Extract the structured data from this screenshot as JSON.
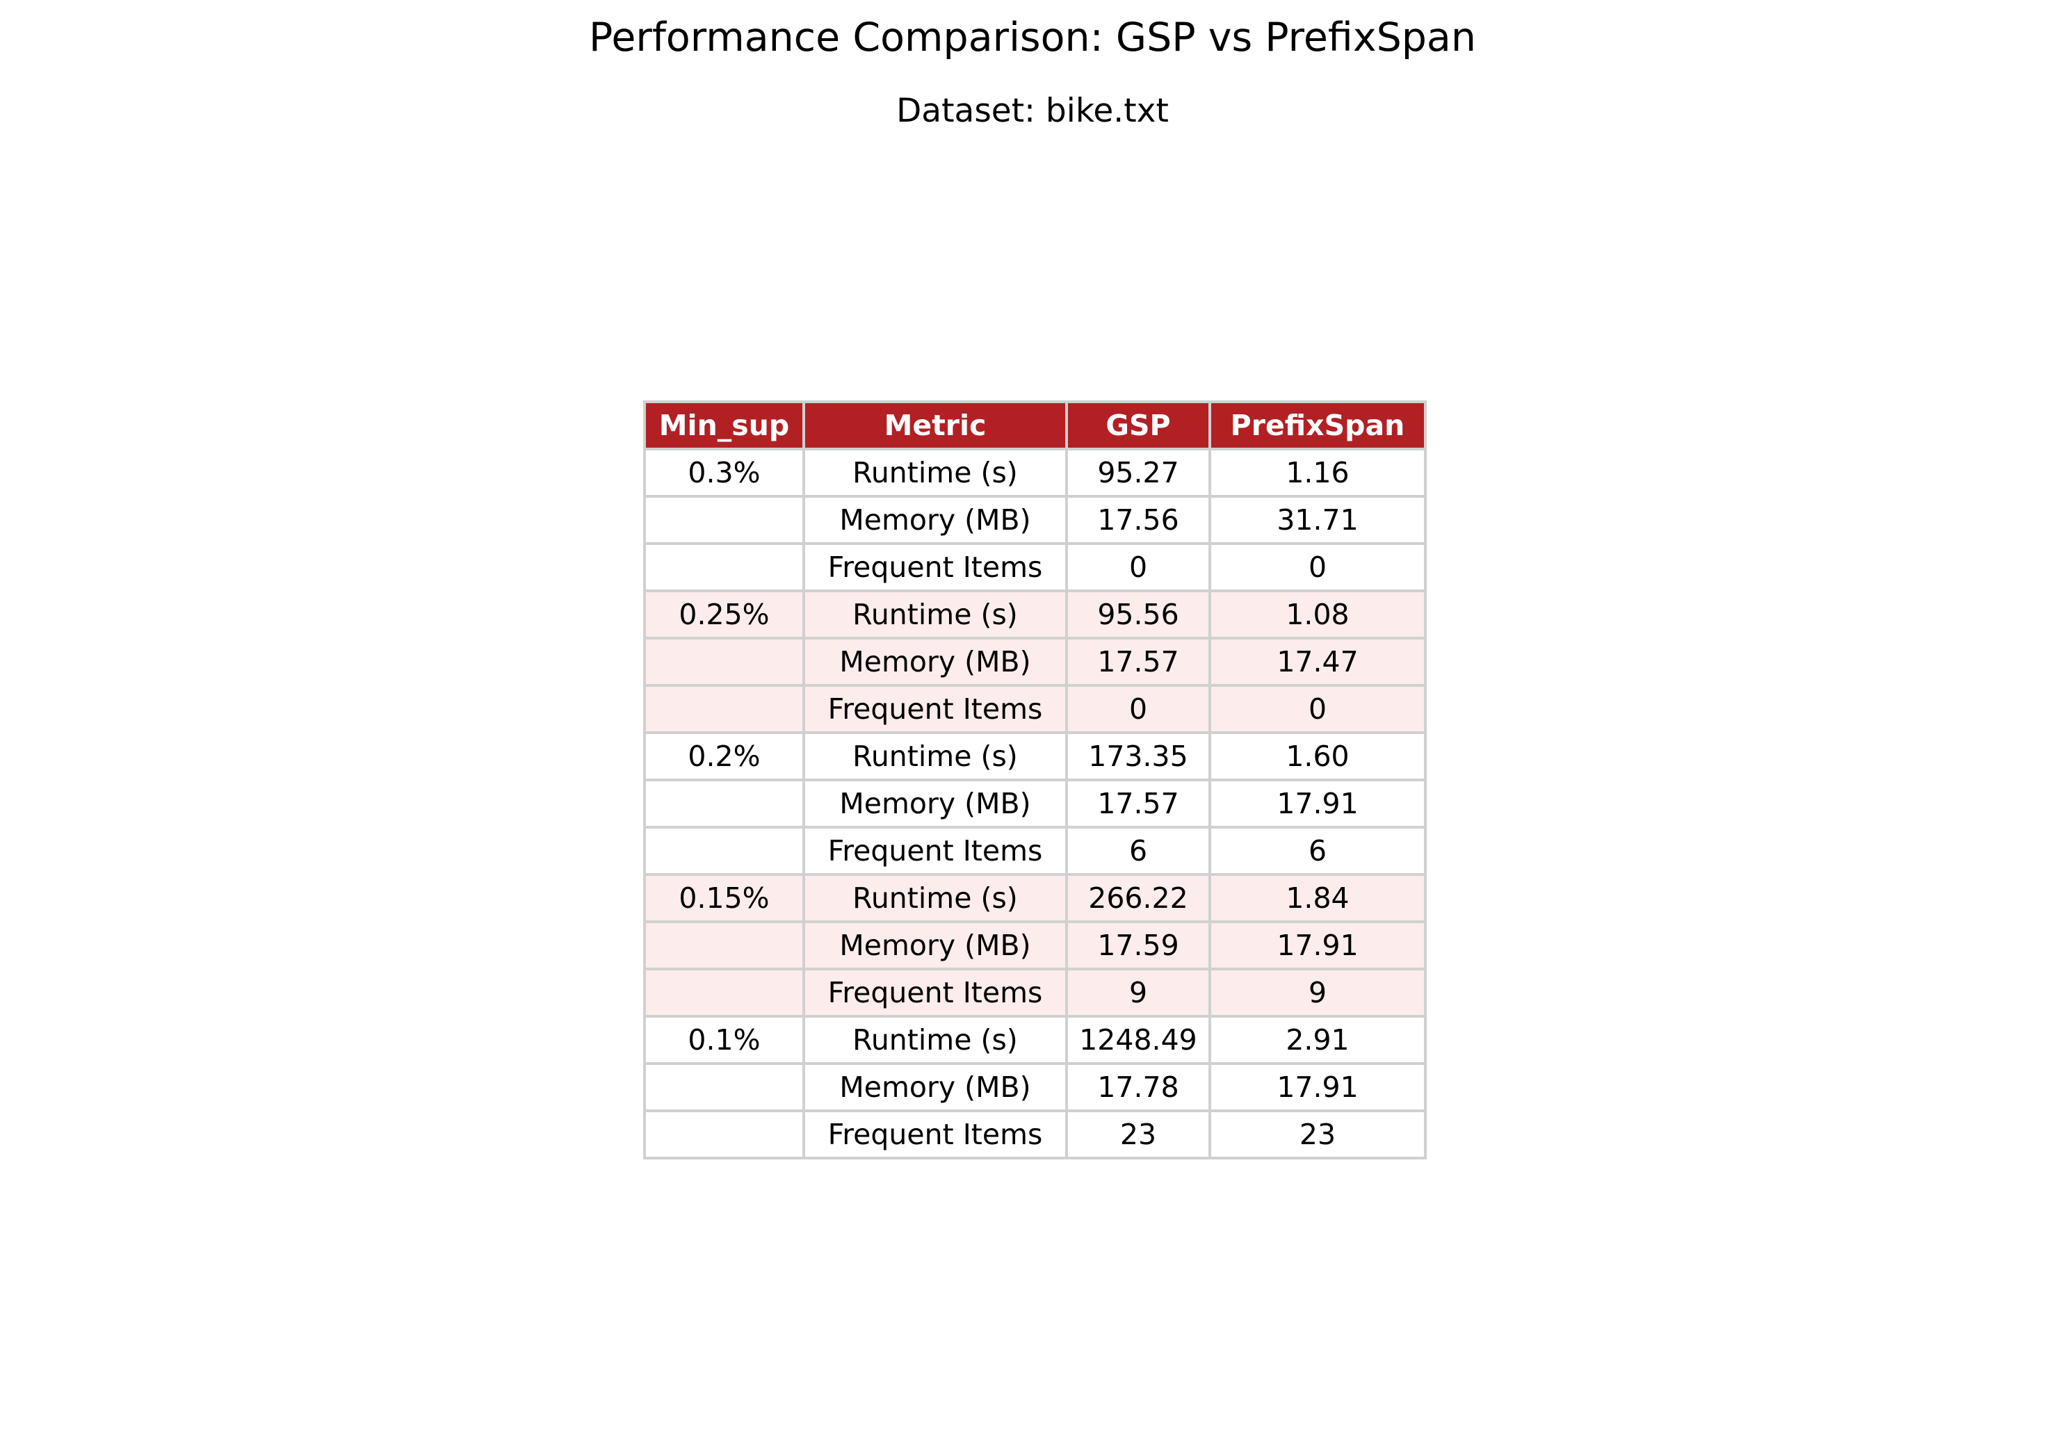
{
  "chart_data": {
    "type": "table",
    "title": "Performance Comparison: GSP vs PrefixSpan",
    "subtitle": "Dataset: bike.txt",
    "columns": [
      "Min_sup",
      "Metric",
      "GSP",
      "PrefixSpan"
    ],
    "groups": [
      {
        "min_sup": "0.3%",
        "rows": [
          {
            "metric": "Runtime (s)",
            "gsp": "95.27",
            "prefixspan": "1.16"
          },
          {
            "metric": "Memory (MB)",
            "gsp": "17.56",
            "prefixspan": "31.71"
          },
          {
            "metric": "Frequent Items",
            "gsp": "0",
            "prefixspan": "0"
          }
        ]
      },
      {
        "min_sup": "0.25%",
        "rows": [
          {
            "metric": "Runtime (s)",
            "gsp": "95.56",
            "prefixspan": "1.08"
          },
          {
            "metric": "Memory (MB)",
            "gsp": "17.57",
            "prefixspan": "17.47"
          },
          {
            "metric": "Frequent Items",
            "gsp": "0",
            "prefixspan": "0"
          }
        ]
      },
      {
        "min_sup": "0.2%",
        "rows": [
          {
            "metric": "Runtime (s)",
            "gsp": "173.35",
            "prefixspan": "1.60"
          },
          {
            "metric": "Memory (MB)",
            "gsp": "17.57",
            "prefixspan": "17.91"
          },
          {
            "metric": "Frequent Items",
            "gsp": "6",
            "prefixspan": "6"
          }
        ]
      },
      {
        "min_sup": "0.15%",
        "rows": [
          {
            "metric": "Runtime (s)",
            "gsp": "266.22",
            "prefixspan": "1.84"
          },
          {
            "metric": "Memory (MB)",
            "gsp": "17.59",
            "prefixspan": "17.91"
          },
          {
            "metric": "Frequent Items",
            "gsp": "9",
            "prefixspan": "9"
          }
        ]
      },
      {
        "min_sup": "0.1%",
        "rows": [
          {
            "metric": "Runtime (s)",
            "gsp": "1248.49",
            "prefixspan": "2.91"
          },
          {
            "metric": "Memory (MB)",
            "gsp": "17.78",
            "prefixspan": "17.91"
          },
          {
            "metric": "Frequent Items",
            "gsp": "23",
            "prefixspan": "23"
          }
        ]
      }
    ],
    "colors": {
      "header_bg": "#b22024",
      "header_text": "#ffffff",
      "band_odd": "#ffffff",
      "band_even": "#fdecec",
      "border": "#d0d0d0"
    }
  }
}
